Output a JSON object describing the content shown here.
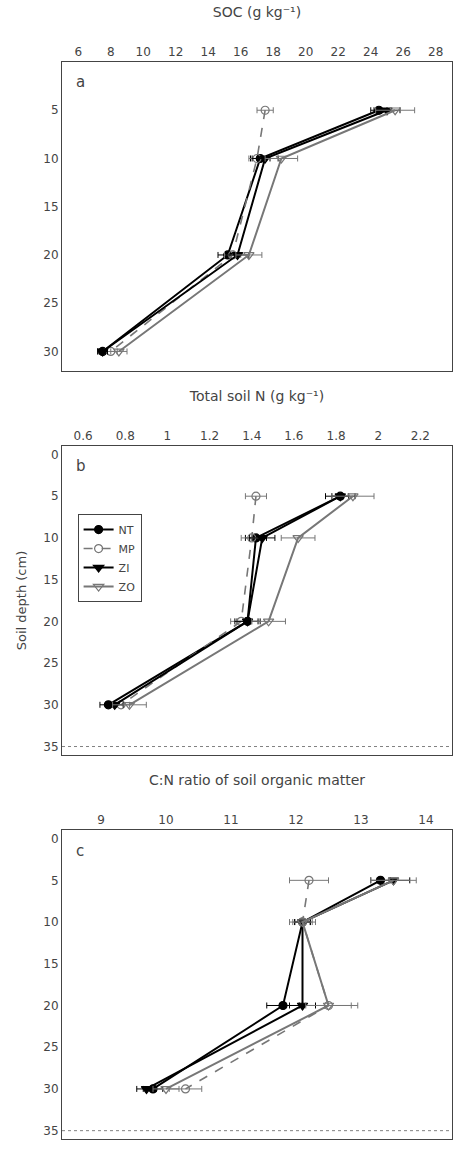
{
  "chart_data": [
    {
      "type": "line",
      "title": "SOC (g kg⁻¹)",
      "xlim": [
        5.0,
        29.0
      ],
      "xticks": [
        6,
        8,
        10,
        12,
        14,
        16,
        18,
        20,
        22,
        24,
        26,
        28
      ],
      "ylim": [
        32,
        0
      ],
      "yticks": [
        5,
        10,
        15,
        20,
        25,
        30
      ],
      "grid": false,
      "annotations": [
        "a"
      ],
      "series": [
        {
          "name": "NT",
          "color": "#000000",
          "marker": "circle",
          "line_style": "solid",
          "x": [
            24.5,
            17.2,
            15.2,
            7.5
          ],
          "y": [
            5,
            10,
            20,
            30
          ],
          "xerr": [
            0.5,
            0.6,
            0.6,
            0.3
          ]
        },
        {
          "name": "MP",
          "color": "#777777",
          "marker": "circle-open",
          "line_style": "dash",
          "x": [
            17.5,
            17.0,
            15.5,
            8.0
          ],
          "y": [
            5,
            10,
            20,
            30
          ],
          "xerr": [
            0.5,
            0.5,
            0.5,
            0.4
          ]
        },
        {
          "name": "ZI",
          "color": "#000000",
          "marker": "triangle-down",
          "line_style": "solid",
          "x": [
            25.0,
            17.5,
            15.8,
            7.5
          ],
          "y": [
            5,
            10,
            20,
            30
          ],
          "xerr": [
            0.8,
            0.8,
            0.7,
            0.3
          ]
        },
        {
          "name": "ZO",
          "color": "#777777",
          "marker": "triangle-down-open",
          "line_style": "solid",
          "x": [
            25.5,
            18.5,
            16.5,
            8.5
          ],
          "y": [
            5,
            10,
            20,
            30
          ],
          "xerr": [
            1.2,
            1.0,
            0.8,
            0.5
          ]
        }
      ]
    },
    {
      "type": "line",
      "title": "Total soil N (g kg⁻¹)",
      "ylabel": "Soil depth (cm)",
      "xlim": [
        0.5,
        2.35
      ],
      "xticks": [
        0.6,
        0.8,
        1,
        1.2,
        1.4,
        1.6,
        1.8,
        2,
        2.2
      ],
      "ylim": [
        36,
        -1
      ],
      "yticks": [
        0,
        5,
        10,
        15,
        20,
        25,
        30,
        35
      ],
      "grid": false,
      "legend": "upper left",
      "annotations": [
        "b"
      ],
      "hline": 35,
      "series": [
        {
          "name": "NT",
          "color": "#000000",
          "marker": "circle",
          "line_style": "solid",
          "x": [
            1.82,
            1.42,
            1.38,
            0.72
          ],
          "y": [
            5,
            10,
            20,
            30
          ],
          "xerr": [
            0.04,
            0.05,
            0.05,
            0.04
          ]
        },
        {
          "name": "MP",
          "color": "#777777",
          "marker": "circle-open",
          "line_style": "dash",
          "x": [
            1.42,
            1.4,
            1.35,
            0.78
          ],
          "y": [
            5,
            10,
            20,
            30
          ],
          "xerr": [
            0.05,
            0.05,
            0.05,
            0.04
          ]
        },
        {
          "name": "ZI",
          "color": "#000000",
          "marker": "triangle-down",
          "line_style": "solid",
          "x": [
            1.82,
            1.45,
            1.38,
            0.75
          ],
          "y": [
            5,
            10,
            20,
            30
          ],
          "xerr": [
            0.07,
            0.06,
            0.06,
            0.04
          ]
        },
        {
          "name": "ZO",
          "color": "#777777",
          "marker": "triangle-down-open",
          "line_style": "solid",
          "x": [
            1.88,
            1.62,
            1.48,
            0.82
          ],
          "y": [
            5,
            10,
            20,
            30
          ],
          "xerr": [
            0.1,
            0.08,
            0.08,
            0.08
          ]
        }
      ]
    },
    {
      "type": "line",
      "title": "C:N ratio of soil organic matter",
      "xlim": [
        8.4,
        14.4
      ],
      "xticks": [
        9,
        10,
        11,
        12,
        13,
        14
      ],
      "ylim": [
        36,
        -1
      ],
      "yticks": [
        0,
        5,
        10,
        15,
        20,
        25,
        30,
        35
      ],
      "grid": false,
      "annotations": [
        "c"
      ],
      "hline": 35,
      "series": [
        {
          "name": "NT",
          "color": "#000000",
          "marker": "circle",
          "line_style": "solid",
          "x": [
            13.3,
            12.1,
            11.8,
            9.8
          ],
          "y": [
            5,
            10,
            20,
            30
          ],
          "xerr": [
            0.15,
            0.12,
            0.25,
            0.15
          ]
        },
        {
          "name": "MP",
          "color": "#777777",
          "marker": "circle-open",
          "line_style": "dash",
          "x": [
            12.2,
            12.1,
            12.5,
            10.3
          ],
          "y": [
            5,
            10,
            20,
            30
          ],
          "xerr": [
            0.3,
            0.15,
            0.45,
            0.25
          ]
        },
        {
          "name": "ZI",
          "color": "#000000",
          "marker": "triangle-down",
          "line_style": "solid",
          "x": [
            13.5,
            12.1,
            12.1,
            9.7
          ],
          "y": [
            5,
            10,
            20,
            30
          ],
          "xerr": [
            0.25,
            0.12,
            0.2,
            0.15
          ]
        },
        {
          "name": "ZO",
          "color": "#777777",
          "marker": "triangle-down-open",
          "line_style": "solid",
          "x": [
            13.5,
            12.1,
            12.5,
            10.0
          ],
          "y": [
            5,
            10,
            20,
            30
          ],
          "xerr": [
            0.35,
            0.2,
            0.35,
            0.2
          ]
        }
      ]
    }
  ]
}
